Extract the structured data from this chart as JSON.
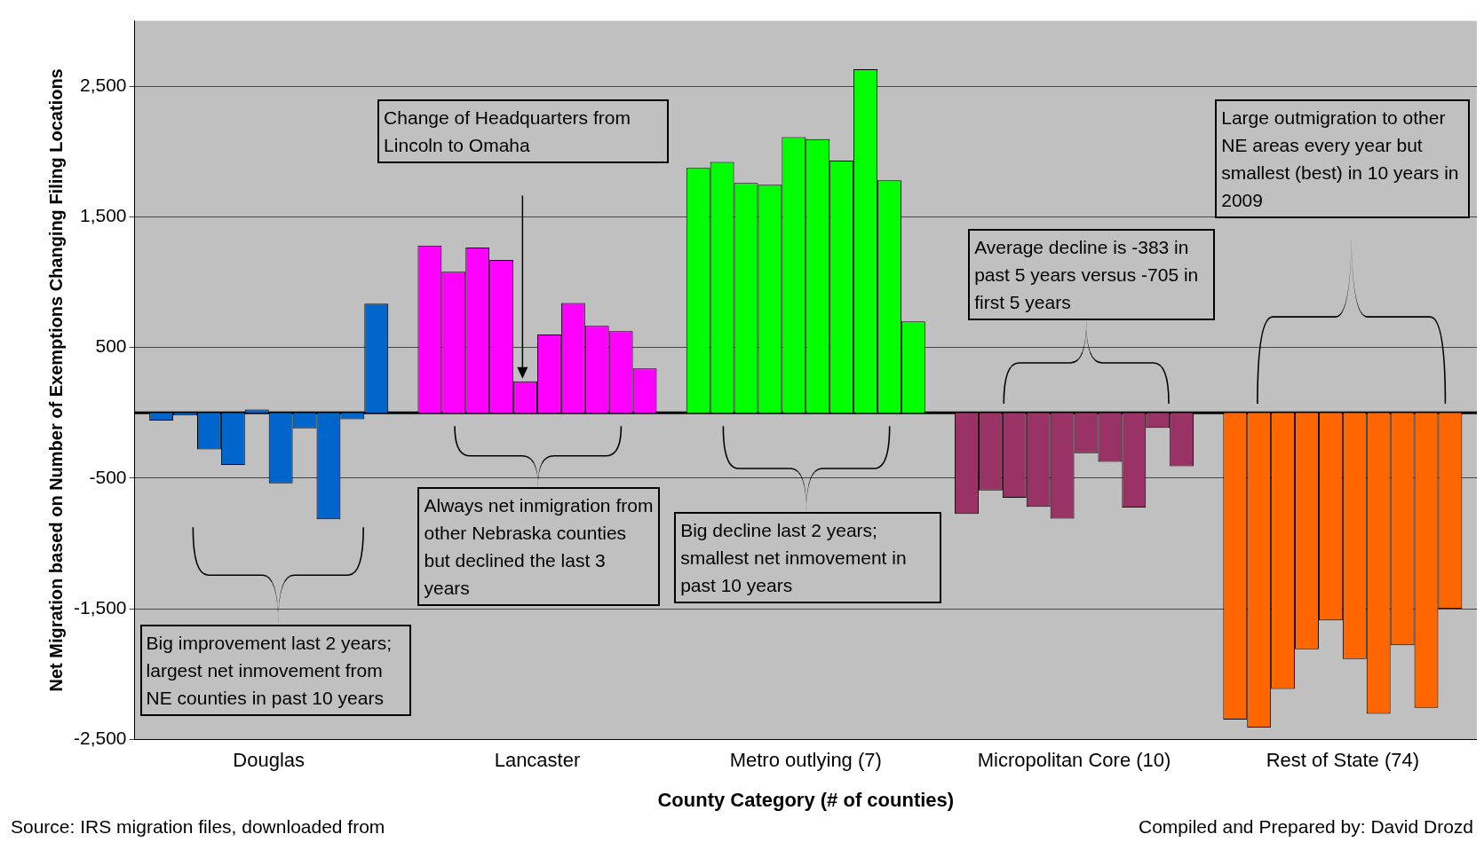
{
  "chart_data": {
    "type": "bar",
    "xlabel": "County Category (# of counties)",
    "ylabel": "Net Migration based on Number of Exemptions Changing Filing Locations",
    "categories": [
      "Douglas",
      "Lancaster",
      "Metro outlying (7)",
      "Micropolitan Core (10)",
      "Rest of State (74)"
    ],
    "series": [
      {
        "colors": [
          "#0066cc",
          "#ff00ff",
          "#00ff00",
          "#993366",
          "#ff6600"
        ],
        "values": [
          -60,
          1280,
          1875,
          -775,
          -2350
        ]
      },
      {
        "colors": [
          "#0066cc",
          "#ff00ff",
          "#00ff00",
          "#993366",
          "#ff6600"
        ],
        "values": [
          -20,
          1080,
          1920,
          -595,
          -2410
        ]
      },
      {
        "colors": [
          "#0066cc",
          "#ff00ff",
          "#00ff00",
          "#993366",
          "#ff6600"
        ],
        "values": [
          -280,
          1265,
          1760,
          -650,
          -2115
        ]
      },
      {
        "colors": [
          "#0066cc",
          "#ff00ff",
          "#00ff00",
          "#993366",
          "#ff6600"
        ],
        "values": [
          -400,
          1170,
          1745,
          -720,
          -1810
        ]
      },
      {
        "colors": [
          "#0066cc",
          "#ff00ff",
          "#00ff00",
          "#993366",
          "#ff6600"
        ],
        "values": [
          25,
          240,
          2110,
          -810,
          -1590
        ]
      },
      {
        "colors": [
          "#0066cc",
          "#ff00ff",
          "#00ff00",
          "#993366",
          "#ff6600"
        ],
        "values": [
          -540,
          600,
          2095,
          -310,
          -1885
        ]
      },
      {
        "colors": [
          "#0066cc",
          "#ff00ff",
          "#00ff00",
          "#993366",
          "#ff6600"
        ],
        "values": [
          -120,
          840,
          1930,
          -375,
          -2305
        ]
      },
      {
        "colors": [
          "#0066cc",
          "#ff00ff",
          "#00ff00",
          "#993366",
          "#ff6600"
        ],
        "values": [
          -815,
          665,
          2630,
          -725,
          -1780
        ]
      },
      {
        "colors": [
          "#0066cc",
          "#ff00ff",
          "#00ff00",
          "#993366",
          "#ff6600"
        ],
        "values": [
          -50,
          625,
          1780,
          -115,
          -2260
        ]
      },
      {
        "colors": [
          "#0066cc",
          "#ff00ff",
          "#00ff00",
          "#993366",
          "#ff6600"
        ],
        "values": [
          835,
          340,
          700,
          -410,
          -1500
        ]
      }
    ],
    "ylim": [
      -2500,
      3000
    ],
    "yticks": [
      {
        "value": -2500,
        "label": "-2,500"
      },
      {
        "value": -1500,
        "label": "-1,500"
      },
      -500,
      500,
      {
        "value": 1500,
        "label": "1,500"
      },
      {
        "value": 2500,
        "label": "2,500"
      }
    ],
    "grid": "y",
    "legend": false,
    "annotations": [
      "Change of Headquarters from Lincoln to Omaha",
      "Always net inmigration from other Nebraska counties but declined the last 3 years",
      "Big decline last 2 years; smallest net inmovement in past 10 years",
      "Average decline is -383 in past 5 years versus -705 in first 5 years",
      "Large outmigration to other NE areas every year but smallest (best) in 10 years in 2009",
      "Big improvement last 2 years; largest net inmovement from NE counties in past 10 years",
      "Source: IRS migration files, downloaded from",
      "Compiled and Prepared by: David Drozd"
    ]
  }
}
